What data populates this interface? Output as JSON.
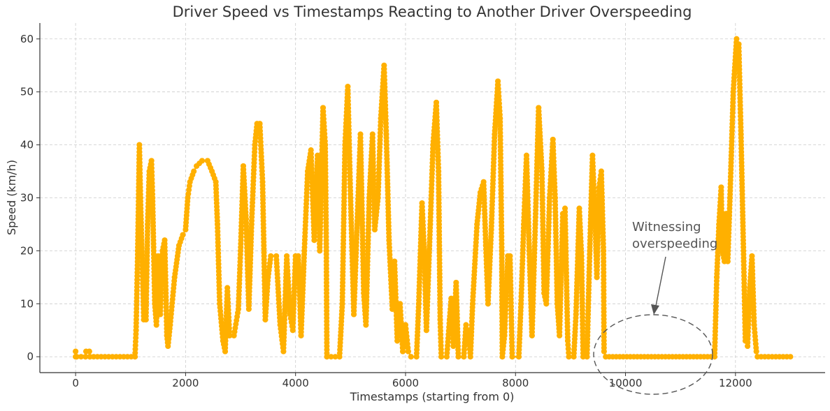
{
  "chart_data": {
    "type": "line",
    "title": "Driver Speed vs Timestamps Reacting to Another Driver Overspeeding",
    "xlabel": "Timestamps (starting from 0)",
    "ylabel": "Speed (km/h)",
    "xlim": [
      -650,
      13630
    ],
    "ylim": [
      -3,
      63
    ],
    "xticks": [
      0,
      2000,
      4000,
      6000,
      8000,
      10000,
      12000
    ],
    "yticks": [
      0,
      10,
      20,
      30,
      40,
      50,
      60
    ],
    "grid": true,
    "marker": "circle",
    "color": "#FFB000",
    "points": [
      [
        0,
        0
      ],
      [
        0,
        1
      ],
      [
        20,
        0
      ],
      [
        180,
        0
      ],
      [
        190,
        1
      ],
      [
        250,
        1
      ],
      [
        260,
        0
      ],
      [
        1080,
        0
      ],
      [
        1100,
        5
      ],
      [
        1130,
        20
      ],
      [
        1160,
        40
      ],
      [
        1180,
        30
      ],
      [
        1200,
        22
      ],
      [
        1240,
        7
      ],
      [
        1280,
        7
      ],
      [
        1310,
        25
      ],
      [
        1340,
        35
      ],
      [
        1380,
        37
      ],
      [
        1400,
        30
      ],
      [
        1440,
        10
      ],
      [
        1470,
        6
      ],
      [
        1500,
        19
      ],
      [
        1540,
        8
      ],
      [
        1580,
        20
      ],
      [
        1620,
        22
      ],
      [
        1660,
        4
      ],
      [
        1680,
        2
      ],
      [
        1720,
        6
      ],
      [
        1800,
        15
      ],
      [
        1880,
        21
      ],
      [
        1950,
        23
      ],
      [
        2000,
        24
      ],
      [
        2040,
        30
      ],
      [
        2080,
        33
      ],
      [
        2150,
        35
      ],
      [
        2200,
        36
      ],
      [
        2300,
        37
      ],
      [
        2400,
        37
      ],
      [
        2480,
        35
      ],
      [
        2550,
        33
      ],
      [
        2580,
        25
      ],
      [
        2620,
        10
      ],
      [
        2680,
        3
      ],
      [
        2720,
        1
      ],
      [
        2760,
        13
      ],
      [
        2800,
        4
      ],
      [
        2880,
        4
      ],
      [
        2960,
        9
      ],
      [
        3000,
        20
      ],
      [
        3050,
        36
      ],
      [
        3100,
        26
      ],
      [
        3150,
        9
      ],
      [
        3200,
        25
      ],
      [
        3260,
        40
      ],
      [
        3300,
        44
      ],
      [
        3350,
        44
      ],
      [
        3400,
        33
      ],
      [
        3450,
        7
      ],
      [
        3500,
        15
      ],
      [
        3550,
        19
      ],
      [
        3650,
        19
      ],
      [
        3720,
        6
      ],
      [
        3780,
        1
      ],
      [
        3840,
        19
      ],
      [
        3900,
        8
      ],
      [
        3950,
        5
      ],
      [
        4000,
        19
      ],
      [
        4050,
        19
      ],
      [
        4100,
        4
      ],
      [
        4160,
        20
      ],
      [
        4220,
        35
      ],
      [
        4280,
        39
      ],
      [
        4340,
        22
      ],
      [
        4400,
        38
      ],
      [
        4440,
        20
      ],
      [
        4500,
        47
      ],
      [
        4540,
        40
      ],
      [
        4560,
        20
      ],
      [
        4570,
        0
      ],
      [
        4800,
        0
      ],
      [
        4850,
        10
      ],
      [
        4900,
        40
      ],
      [
        4950,
        51
      ],
      [
        5000,
        30
      ],
      [
        5060,
        8
      ],
      [
        5120,
        25
      ],
      [
        5180,
        42
      ],
      [
        5240,
        12
      ],
      [
        5280,
        6
      ],
      [
        5340,
        30
      ],
      [
        5400,
        42
      ],
      [
        5440,
        24
      ],
      [
        5500,
        30
      ],
      [
        5550,
        45
      ],
      [
        5610,
        55
      ],
      [
        5650,
        42
      ],
      [
        5700,
        22
      ],
      [
        5760,
        9
      ],
      [
        5800,
        18
      ],
      [
        5850,
        3
      ],
      [
        5900,
        10
      ],
      [
        5950,
        1
      ],
      [
        6000,
        6
      ],
      [
        6050,
        1
      ],
      [
        6100,
        0
      ],
      [
        6200,
        0
      ],
      [
        6240,
        10
      ],
      [
        6300,
        29
      ],
      [
        6340,
        20
      ],
      [
        6380,
        5
      ],
      [
        6450,
        25
      ],
      [
        6500,
        40
      ],
      [
        6560,
        48
      ],
      [
        6600,
        35
      ],
      [
        6630,
        7
      ],
      [
        6650,
        0
      ],
      [
        6750,
        0
      ],
      [
        6800,
        7
      ],
      [
        6830,
        11
      ],
      [
        6870,
        2
      ],
      [
        6920,
        14
      ],
      [
        6960,
        0
      ],
      [
        7060,
        0
      ],
      [
        7100,
        6
      ],
      [
        7140,
        5
      ],
      [
        7180,
        0
      ],
      [
        7220,
        10
      ],
      [
        7300,
        25
      ],
      [
        7360,
        31
      ],
      [
        7420,
        33
      ],
      [
        7460,
        21
      ],
      [
        7500,
        10
      ],
      [
        7560,
        24
      ],
      [
        7620,
        42
      ],
      [
        7680,
        52
      ],
      [
        7720,
        45
      ],
      [
        7750,
        20
      ],
      [
        7760,
        0
      ],
      [
        7800,
        4
      ],
      [
        7860,
        19
      ],
      [
        7900,
        19
      ],
      [
        7940,
        0
      ],
      [
        8060,
        0
      ],
      [
        8100,
        10
      ],
      [
        8150,
        25
      ],
      [
        8200,
        38
      ],
      [
        8250,
        20
      ],
      [
        8300,
        4
      ],
      [
        8360,
        25
      ],
      [
        8420,
        47
      ],
      [
        8480,
        35
      ],
      [
        8520,
        12
      ],
      [
        8560,
        10
      ],
      [
        8620,
        30
      ],
      [
        8680,
        41
      ],
      [
        8720,
        30
      ],
      [
        8760,
        10
      ],
      [
        8800,
        4
      ],
      [
        8860,
        27
      ],
      [
        8900,
        28
      ],
      [
        8950,
        3
      ],
      [
        8970,
        0
      ],
      [
        9060,
        0
      ],
      [
        9100,
        8
      ],
      [
        9160,
        28
      ],
      [
        9200,
        19
      ],
      [
        9230,
        0
      ],
      [
        9300,
        0
      ],
      [
        9350,
        20
      ],
      [
        9400,
        38
      ],
      [
        9450,
        25
      ],
      [
        9480,
        15
      ],
      [
        9520,
        32
      ],
      [
        9560,
        35
      ],
      [
        9600,
        20
      ],
      [
        9610,
        1
      ],
      [
        9640,
        0
      ],
      [
        11620,
        0
      ],
      [
        11660,
        15
      ],
      [
        11700,
        25
      ],
      [
        11740,
        32
      ],
      [
        11760,
        20
      ],
      [
        11800,
        18
      ],
      [
        11830,
        27
      ],
      [
        11860,
        18
      ],
      [
        11900,
        30
      ],
      [
        11960,
        50
      ],
      [
        12020,
        60
      ],
      [
        12060,
        59
      ],
      [
        12100,
        42
      ],
      [
        12150,
        18
      ],
      [
        12180,
        3
      ],
      [
        12220,
        2
      ],
      [
        12260,
        13
      ],
      [
        12300,
        19
      ],
      [
        12340,
        6
      ],
      [
        12380,
        1
      ],
      [
        12400,
        0
      ],
      [
        13000,
        0
      ]
    ],
    "annotation": {
      "lines": [
        "Witnessing",
        "overspeeding"
      ],
      "target": [
        10500,
        8
      ],
      "highlight": "dashed ellipse around the zero-speed stretch",
      "color": "#555555"
    }
  }
}
